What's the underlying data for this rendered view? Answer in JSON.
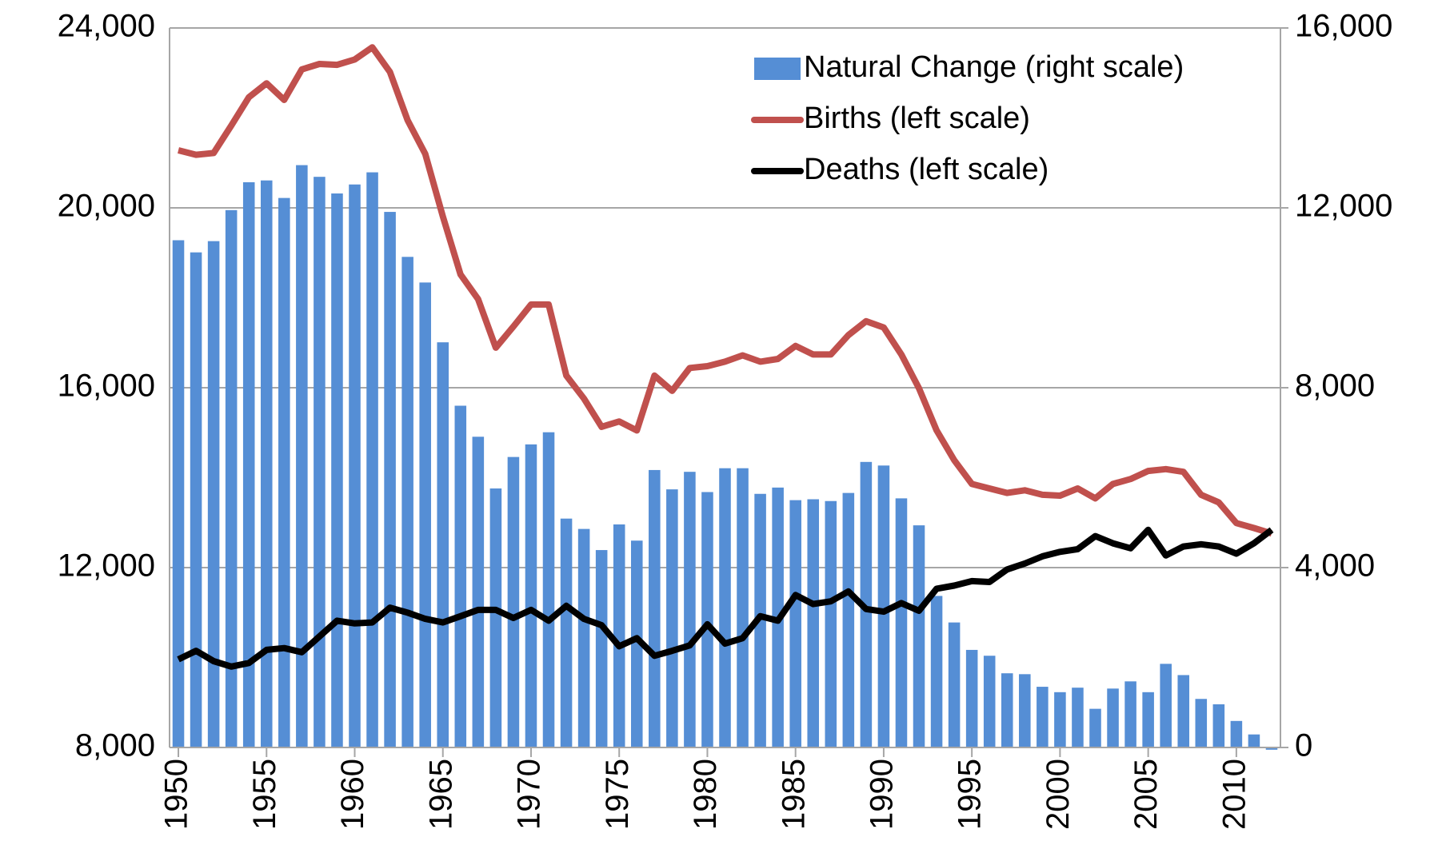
{
  "chart_data": {
    "type": "bar_line",
    "x": [
      1950,
      1951,
      1952,
      1953,
      1954,
      1955,
      1956,
      1957,
      1958,
      1959,
      1960,
      1961,
      1962,
      1963,
      1964,
      1965,
      1966,
      1967,
      1968,
      1969,
      1970,
      1971,
      1972,
      1973,
      1974,
      1975,
      1976,
      1977,
      1978,
      1979,
      1980,
      1981,
      1982,
      1983,
      1984,
      1985,
      1986,
      1987,
      1988,
      1989,
      1990,
      1991,
      1992,
      1993,
      1994,
      1995,
      1996,
      1997,
      1998,
      1999,
      2000,
      2001,
      2002,
      2003,
      2004,
      2005,
      2006,
      2007,
      2008,
      2009,
      2010,
      2011,
      2012
    ],
    "xlim": [
      1949.5,
      2012.5
    ],
    "xticks": [
      1950,
      1955,
      1960,
      1965,
      1970,
      1975,
      1980,
      1985,
      1990,
      1995,
      2000,
      2005,
      2010
    ],
    "ylim": [
      8000,
      24000
    ],
    "yticks": [
      {
        "value": 8000,
        "label": "8,000"
      },
      {
        "value": 12000,
        "label": "12,000"
      },
      {
        "value": 16000,
        "label": "16,000"
      },
      {
        "value": 20000,
        "label": "20,000"
      },
      {
        "value": 24000,
        "label": "24,000"
      }
    ],
    "y2lim": [
      0,
      16000
    ],
    "y2ticks": [
      0,
      {
        "value": 4000,
        "label": "4,000"
      },
      {
        "value": 8000,
        "label": "8,000"
      },
      {
        "value": 12000,
        "label": "12,000"
      },
      {
        "value": 16000,
        "label": "16,000"
      }
    ],
    "grid": true,
    "legend": "upper right",
    "series": [
      {
        "name": "Natural Change (right scale)",
        "type": "bar",
        "axis": "y2",
        "color": "#558ed5",
        "values": [
          11280,
          11010,
          11260,
          11950,
          12570,
          12610,
          12220,
          12950,
          12690,
          12320,
          12520,
          12790,
          11910,
          10910,
          10340,
          9010,
          7600,
          6910,
          5760,
          6460,
          6740,
          7010,
          5090,
          4860,
          4390,
          4960,
          4600,
          6170,
          5740,
          6130,
          5680,
          6210,
          6210,
          5640,
          5780,
          5500,
          5520,
          5480,
          5660,
          6350,
          6270,
          5540,
          4940,
          3370,
          2780,
          2170,
          2040,
          1650,
          1630,
          1350,
          1230,
          1330,
          860,
          1310,
          1470,
          1230,
          1860,
          1610,
          1080,
          960,
          590,
          290,
          -50
        ]
      },
      {
        "name": "Births (left scale)",
        "type": "line",
        "color": "#c0504d",
        "values": [
          21280,
          21180,
          21220,
          21830,
          22460,
          22770,
          22400,
          23080,
          23200,
          23180,
          23300,
          23570,
          23020,
          21950,
          21200,
          19810,
          18520,
          17970,
          16890,
          17360,
          17850,
          17850,
          16270,
          15760,
          15130,
          15250,
          15050,
          16270,
          15930,
          16440,
          16480,
          16580,
          16720,
          16580,
          16640,
          16930,
          16740,
          16740,
          17170,
          17480,
          17340,
          16740,
          15990,
          15050,
          14390,
          13860,
          13760,
          13660,
          13720,
          13620,
          13600,
          13760,
          13540,
          13860,
          13970,
          14150,
          14190,
          14130,
          13620,
          13450,
          12990,
          12880,
          12760
        ]
      },
      {
        "name": "Deaths (left scale)",
        "type": "line",
        "color": "#000000",
        "values": [
          9960,
          10150,
          9920,
          9800,
          9880,
          10170,
          10210,
          10120,
          10470,
          10820,
          10760,
          10780,
          11110,
          11000,
          10860,
          10780,
          10920,
          11060,
          11060,
          10880,
          11060,
          10820,
          11150,
          10860,
          10720,
          10250,
          10430,
          10040,
          10150,
          10270,
          10740,
          10310,
          10430,
          10920,
          10820,
          11390,
          11190,
          11250,
          11470,
          11080,
          11020,
          11210,
          11040,
          11530,
          11600,
          11700,
          11680,
          11960,
          12090,
          12250,
          12350,
          12410,
          12700,
          12540,
          12430,
          12840,
          12270,
          12470,
          12520,
          12470,
          12310,
          12540,
          12840
        ]
      }
    ]
  }
}
